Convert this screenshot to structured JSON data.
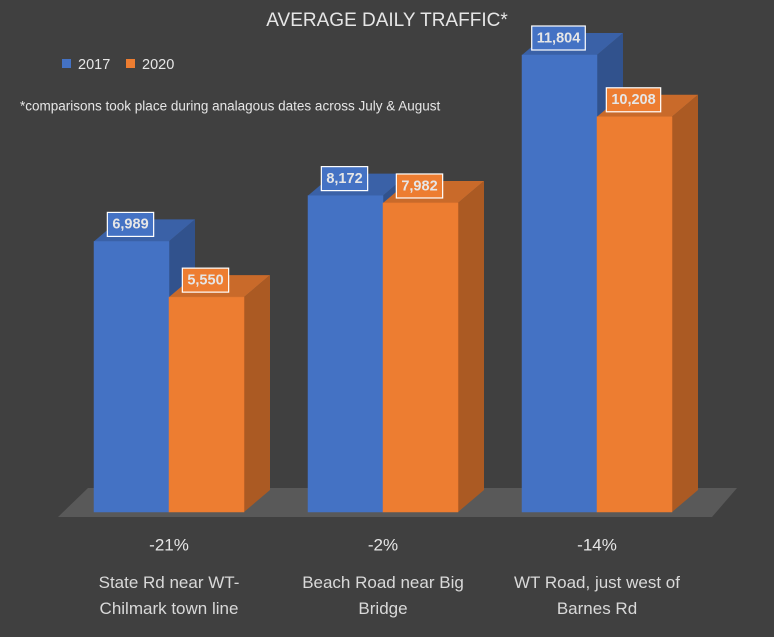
{
  "chart_data": {
    "type": "bar3d",
    "title": "AVERAGE DAILY TRAFFIC*",
    "note": "*comparisons took place during analagous dates across July & August",
    "categories": [
      "State Rd near WT-Chilmark town line",
      "Beach Road near Big Bridge",
      "WT Road, just west of Barnes Rd"
    ],
    "annotations": [
      "-21%",
      "-2%",
      "-14%"
    ],
    "series": [
      {
        "name": "2017",
        "color": "#4472c4",
        "values": [
          6989,
          8172,
          11804
        ],
        "value_labels": [
          "6,989",
          "8,172",
          "11,804"
        ]
      },
      {
        "name": "2020",
        "color": "#ed7d31",
        "values": [
          5550,
          7982,
          10208
        ],
        "value_labels": [
          "5,550",
          "7,982",
          "10,208"
        ]
      }
    ]
  }
}
